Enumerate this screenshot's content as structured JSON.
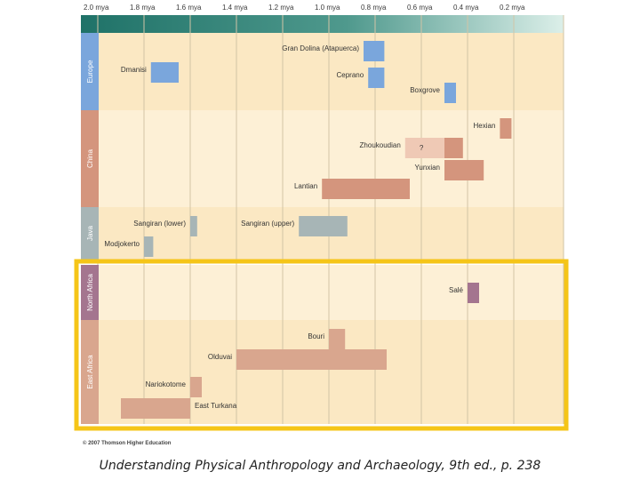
{
  "chart_data": {
    "type": "timeline",
    "x_unit": "mya",
    "x_range": [
      2.0,
      0.0
    ],
    "ticks": [
      "2.0 mya",
      "1.8 mya",
      "1.6 mya",
      "1.4 mya",
      "1.2 mya",
      "1.0 mya",
      "0.8 mya",
      "0.6 mya",
      "0.4 mya",
      "0.2 mya"
    ],
    "tick_values": [
      2.0,
      1.8,
      1.6,
      1.4,
      1.2,
      1.0,
      0.8,
      0.6,
      0.4,
      0.2
    ],
    "regions": [
      {
        "name": "Europe",
        "color": "#7aa6dc",
        "bg": "#fbe8c3"
      },
      {
        "name": "China",
        "color": "#d4957d",
        "bg": "#fdf0d6"
      },
      {
        "name": "Java",
        "color": "#a7b5b6",
        "bg": "#fbe8c3"
      },
      {
        "name": "North Africa",
        "color": "#a4758f",
        "bg": "#fdf0d6"
      },
      {
        "name": "East Africa",
        "color": "#d9a68e",
        "bg": "#fbe8c3"
      }
    ],
    "sites": [
      {
        "name": "Gran Dolina (Atapuerca)",
        "region": "Europe",
        "start": 0.85,
        "end": 0.76,
        "label_side": "left"
      },
      {
        "name": "Dmanisi",
        "region": "Europe",
        "start": 1.77,
        "end": 1.65,
        "label_side": "left"
      },
      {
        "name": "Ceprano",
        "region": "Europe",
        "start": 0.83,
        "end": 0.76,
        "label_side": "left"
      },
      {
        "name": "Boxgrove",
        "region": "Europe",
        "start": 0.5,
        "end": 0.45,
        "label_side": "left"
      },
      {
        "name": "Hexian",
        "region": "China",
        "start": 0.26,
        "end": 0.21,
        "label_side": "left"
      },
      {
        "name": "Zhoukoudian",
        "region": "China",
        "start": 0.67,
        "end": 0.42,
        "uncertain_until": 0.5,
        "uncertain_label": "?",
        "label_side": "left"
      },
      {
        "name": "Yunxian",
        "region": "China",
        "start": 0.5,
        "end": 0.33,
        "label_side": "left"
      },
      {
        "name": "Lantian",
        "region": "China",
        "start": 1.03,
        "end": 0.65,
        "label_side": "left"
      },
      {
        "name": "Sangiran (lower)",
        "region": "Java",
        "start": 1.6,
        "end": 1.57,
        "label_side": "left"
      },
      {
        "name": "Sangiran (upper)",
        "region": "Java",
        "start": 1.13,
        "end": 0.92,
        "label_side": "left"
      },
      {
        "name": "Modjokerto",
        "region": "Java",
        "start": 1.8,
        "end": 1.76,
        "label_side": "left"
      },
      {
        "name": "Salé",
        "region": "North Africa",
        "start": 0.4,
        "end": 0.35,
        "label_side": "left"
      },
      {
        "name": "Bouri",
        "region": "East Africa",
        "start": 1.0,
        "end": 0.93,
        "label_side": "left"
      },
      {
        "name": "Olduvai",
        "region": "East Africa",
        "start": 1.4,
        "end": 0.75,
        "label_side": "left"
      },
      {
        "name": "Nariokotome",
        "region": "East Africa",
        "start": 1.6,
        "end": 1.55,
        "label_side": "left"
      },
      {
        "name": "East Turkana",
        "region": "East Africa",
        "start": 1.9,
        "end": 1.6,
        "label_side": "right"
      }
    ],
    "highlight": {
      "regions": [
        "North Africa",
        "East Africa"
      ],
      "color": "#f5c518"
    }
  },
  "copyright": "© 2007 Thomson Higher Education",
  "caption": "Understanding Physical Anthropology and Archaeology, 9th ed., p. 238",
  "colors": {
    "header_dark": "#2a7b70",
    "header_light": "#d8ece6",
    "gridline": "#d2c4a6",
    "highlight": "#f5c518",
    "uncertain": "#efc9b5"
  }
}
